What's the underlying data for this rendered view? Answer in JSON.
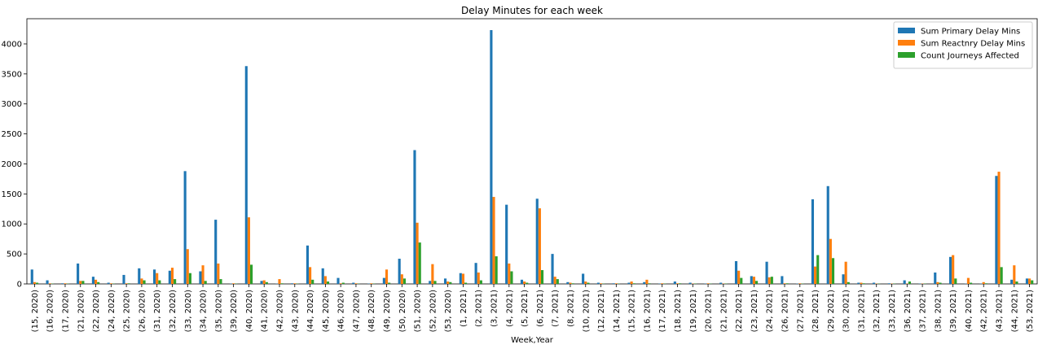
{
  "chart_data": {
    "type": "bar",
    "title": "Delay Minutes for each week",
    "xlabel": "Week,Year",
    "ylabel": "",
    "ylim": [
      0,
      4420
    ],
    "yticks": [
      0,
      500,
      1000,
      1500,
      2000,
      2500,
      3000,
      3500,
      4000
    ],
    "legend_position": "top-right",
    "grid": false,
    "categories": [
      "(15, 2020)",
      "(16, 2020)",
      "(17, 2020)",
      "(21, 2020)",
      "(22, 2020)",
      "(24, 2020)",
      "(25, 2020)",
      "(26, 2020)",
      "(31, 2020)",
      "(32, 2020)",
      "(33, 2020)",
      "(34, 2020)",
      "(35, 2020)",
      "(39, 2020)",
      "(40, 2020)",
      "(41, 2020)",
      "(42, 2020)",
      "(43, 2020)",
      "(44, 2020)",
      "(45, 2020)",
      "(46, 2020)",
      "(47, 2020)",
      "(48, 2020)",
      "(49, 2020)",
      "(50, 2020)",
      "(51, 2020)",
      "(52, 2020)",
      "(53, 2020)",
      "(1, 2021)",
      "(2, 2021)",
      "(3, 2021)",
      "(4, 2021)",
      "(5, 2021)",
      "(6, 2021)",
      "(7, 2021)",
      "(8, 2021)",
      "(10, 2021)",
      "(12, 2021)",
      "(14, 2021)",
      "(15, 2021)",
      "(16, 2021)",
      "(17, 2021)",
      "(18, 2021)",
      "(19, 2021)",
      "(20, 2021)",
      "(21, 2021)",
      "(22, 2021)",
      "(23, 2021)",
      "(24, 2021)",
      "(26, 2021)",
      "(27, 2021)",
      "(28, 2021)",
      "(29, 2021)",
      "(30, 2021)",
      "(31, 2021)",
      "(32, 2021)",
      "(33, 2021)",
      "(36, 2021)",
      "(37, 2021)",
      "(38, 2021)",
      "(39, 2021)",
      "(40, 2021)",
      "(42, 2021)",
      "(43, 2021)",
      "(44, 2021)",
      "(53, 2021)"
    ],
    "series": [
      {
        "name": "Sum Primary Delay Mins",
        "color": "#1f77b4",
        "values": [
          240,
          60,
          10,
          340,
          120,
          20,
          150,
          260,
          240,
          220,
          1880,
          210,
          1070,
          5,
          3630,
          50,
          5,
          10,
          640,
          260,
          100,
          20,
          5,
          100,
          420,
          2230,
          50,
          90,
          180,
          350,
          4230,
          1320,
          70,
          1420,
          500,
          30,
          170,
          20,
          10,
          20,
          30,
          5,
          40,
          20,
          5,
          20,
          380,
          130,
          370,
          130,
          5,
          1410,
          1630,
          160,
          20,
          20,
          10,
          60,
          5,
          190,
          450,
          5,
          5,
          1800,
          70,
          90
        ]
      },
      {
        "name": "Sum Reactnry Delay Mins",
        "color": "#ff7f0e",
        "values": [
          30,
          10,
          10,
          50,
          70,
          10,
          10,
          90,
          180,
          270,
          580,
          310,
          340,
          10,
          1110,
          60,
          80,
          10,
          280,
          130,
          10,
          10,
          10,
          240,
          160,
          1020,
          330,
          40,
          170,
          190,
          1450,
          340,
          40,
          1260,
          120,
          20,
          40,
          10,
          10,
          40,
          70,
          10,
          10,
          5,
          10,
          5,
          220,
          120,
          110,
          10,
          10,
          290,
          750,
          370,
          20,
          5,
          5,
          5,
          5,
          30,
          480,
          100,
          30,
          1870,
          310,
          90
        ]
      },
      {
        "name": "Count Journeys Affected",
        "color": "#2ca02c",
        "values": [
          20,
          5,
          5,
          50,
          30,
          5,
          10,
          60,
          60,
          80,
          180,
          50,
          80,
          5,
          320,
          30,
          10,
          5,
          70,
          40,
          20,
          5,
          5,
          20,
          90,
          690,
          50,
          30,
          20,
          60,
          460,
          210,
          20,
          230,
          80,
          10,
          20,
          5,
          5,
          10,
          10,
          5,
          10,
          5,
          5,
          5,
          100,
          50,
          120,
          10,
          5,
          480,
          430,
          30,
          10,
          5,
          5,
          40,
          5,
          20,
          90,
          20,
          10,
          280,
          40,
          60
        ]
      }
    ]
  }
}
